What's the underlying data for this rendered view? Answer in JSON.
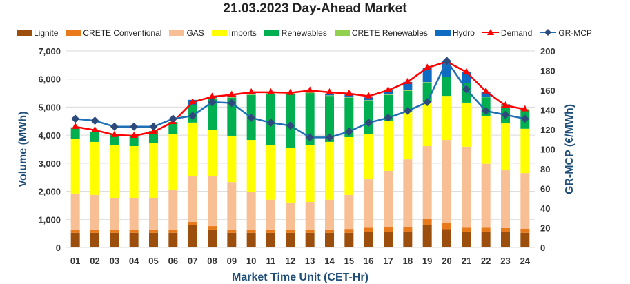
{
  "chart_data": {
    "type": "bar",
    "title": "21.03.2023  Day-Ahead Market",
    "xlabel": "Market Time Unit (CET-Hr)",
    "ylabel": "Volume (MWh)",
    "y2label": "GR-MCP (€/MWh)",
    "ylim": [
      0,
      7000
    ],
    "y2lim": [
      0,
      200
    ],
    "yticks": [
      "0",
      "1,000",
      "2,000",
      "3,000",
      "4,000",
      "5,000",
      "6,000",
      "7,000"
    ],
    "y2ticks": [
      "0",
      "20",
      "40",
      "60",
      "80",
      "100",
      "120",
      "140",
      "160",
      "180",
      "200"
    ],
    "grid": true,
    "legend_position": "top",
    "categories": [
      "01",
      "02",
      "03",
      "04",
      "05",
      "06",
      "07",
      "08",
      "09",
      "10",
      "11",
      "12",
      "13",
      "14",
      "15",
      "16",
      "17",
      "18",
      "19",
      "20",
      "21",
      "22",
      "23",
      "24"
    ],
    "series": [
      {
        "name": "Lignite",
        "kind": "bar",
        "color": "#9C4F0C",
        "values": [
          520,
          520,
          520,
          520,
          520,
          520,
          790,
          640,
          520,
          520,
          520,
          520,
          520,
          520,
          520,
          540,
          540,
          540,
          800,
          650,
          540,
          540,
          540,
          520
        ]
      },
      {
        "name": "CRETE Conventional",
        "kind": "bar",
        "color": "#E87A1B",
        "values": [
          120,
          120,
          120,
          120,
          120,
          120,
          120,
          120,
          120,
          120,
          120,
          120,
          120,
          120,
          140,
          160,
          190,
          200,
          230,
          210,
          160,
          160,
          150,
          150
        ]
      },
      {
        "name": "GAS",
        "kind": "bar",
        "color": "#F8BF94",
        "values": [
          1280,
          1230,
          1130,
          1130,
          1130,
          1400,
          1620,
          1770,
          1690,
          1330,
          1060,
          960,
          980,
          1060,
          1210,
          1730,
          2000,
          2400,
          2580,
          2970,
          2890,
          2280,
          2060,
          1980
        ]
      },
      {
        "name": "Imports",
        "kind": "bar",
        "color": "#FFFF00",
        "values": [
          1940,
          1890,
          1890,
          1840,
          1960,
          2010,
          1920,
          1670,
          1650,
          1860,
          1940,
          1940,
          2020,
          2060,
          2060,
          1620,
          1790,
          1700,
          1570,
          1570,
          1570,
          1710,
          1670,
          1580
        ]
      },
      {
        "name": "Renewables",
        "kind": "bar",
        "color": "#00B050",
        "values": [
          420,
          370,
          390,
          370,
          420,
          420,
          610,
          1110,
          1350,
          1600,
          1840,
          1940,
          1860,
          1640,
          1400,
          1180,
          910,
          740,
          690,
          670,
          690,
          660,
          620,
          680
        ]
      },
      {
        "name": "CRETE Renewables",
        "kind": "bar",
        "color": "#92D050",
        "values": [
          0,
          0,
          0,
          0,
          0,
          0,
          20,
          20,
          20,
          20,
          20,
          20,
          20,
          20,
          20,
          20,
          20,
          20,
          20,
          20,
          20,
          20,
          20,
          20
        ]
      },
      {
        "name": "Hydro",
        "kind": "bar",
        "color": "#0E6BC2",
        "values": [
          0,
          0,
          0,
          0,
          0,
          0,
          180,
          50,
          70,
          60,
          30,
          0,
          40,
          60,
          100,
          100,
          150,
          300,
          520,
          550,
          370,
          180,
          40,
          0
        ]
      },
      {
        "name": "Demand",
        "kind": "line",
        "axis": "left",
        "color": "#FF0000",
        "values": [
          4300,
          4180,
          4010,
          3980,
          4120,
          4470,
          5180,
          5370,
          5440,
          5530,
          5530,
          5510,
          5590,
          5530,
          5480,
          5390,
          5600,
          5900,
          6400,
          6620,
          6250,
          5560,
          5060,
          4920
        ]
      },
      {
        "name": "GR-MCP",
        "kind": "line",
        "axis": "right",
        "color": "#1F6FB5",
        "marker_color": "#2E4A7A",
        "values": [
          131,
          129,
          123,
          123,
          123,
          131,
          134,
          148,
          147,
          132,
          127,
          124,
          112,
          112,
          118,
          127,
          132,
          139,
          148,
          190,
          161,
          139,
          135,
          131
        ]
      }
    ]
  }
}
